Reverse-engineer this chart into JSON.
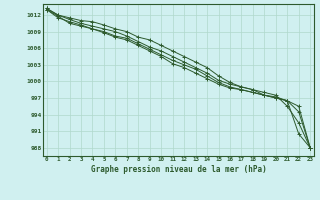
{
  "title": "Graphe pression niveau de la mer (hPa)",
  "background_color": "#d0f0f0",
  "grid_color": "#b0d8cc",
  "line_color": "#2d5a2d",
  "xlim": [
    -0.3,
    23.3
  ],
  "ylim": [
    986.5,
    1014.0
  ],
  "yticks": [
    988,
    991,
    994,
    997,
    1000,
    1003,
    1006,
    1009,
    1012
  ],
  "xticks": [
    0,
    1,
    2,
    3,
    4,
    5,
    6,
    7,
    8,
    9,
    10,
    11,
    12,
    13,
    14,
    15,
    16,
    17,
    18,
    19,
    20,
    21,
    22,
    23
  ],
  "series": [
    [
      1013.2,
      1012.0,
      1011.5,
      1011.0,
      1010.8,
      1010.2,
      1009.5,
      1009.0,
      1008.0,
      1007.5,
      1006.5,
      1005.5,
      1004.5,
      1003.5,
      1002.5,
      1001.0,
      999.8,
      999.0,
      998.5,
      997.5,
      997.0,
      996.5,
      990.5,
      988.0
    ],
    [
      1013.2,
      1012.0,
      1011.2,
      1010.5,
      1010.0,
      1009.5,
      1009.0,
      1008.2,
      1007.2,
      1006.2,
      1005.5,
      1004.5,
      1003.5,
      1002.5,
      1001.5,
      1000.2,
      999.5,
      999.0,
      998.5,
      998.0,
      997.5,
      995.5,
      992.5,
      988.0
    ],
    [
      1013.0,
      1011.5,
      1010.8,
      1010.2,
      1009.5,
      1008.8,
      1008.0,
      1007.5,
      1006.5,
      1005.5,
      1004.5,
      1003.2,
      1002.5,
      1001.5,
      1000.5,
      999.5,
      998.8,
      998.5,
      998.0,
      997.5,
      997.0,
      996.5,
      995.5,
      988.0
    ],
    [
      1013.0,
      1011.8,
      1010.5,
      1010.0,
      1009.5,
      1009.0,
      1008.2,
      1007.8,
      1006.8,
      1005.8,
      1004.8,
      1003.8,
      1003.0,
      1002.2,
      1001.0,
      999.8,
      999.0,
      998.5,
      998.0,
      997.5,
      997.2,
      996.5,
      994.5,
      988.0
    ]
  ]
}
